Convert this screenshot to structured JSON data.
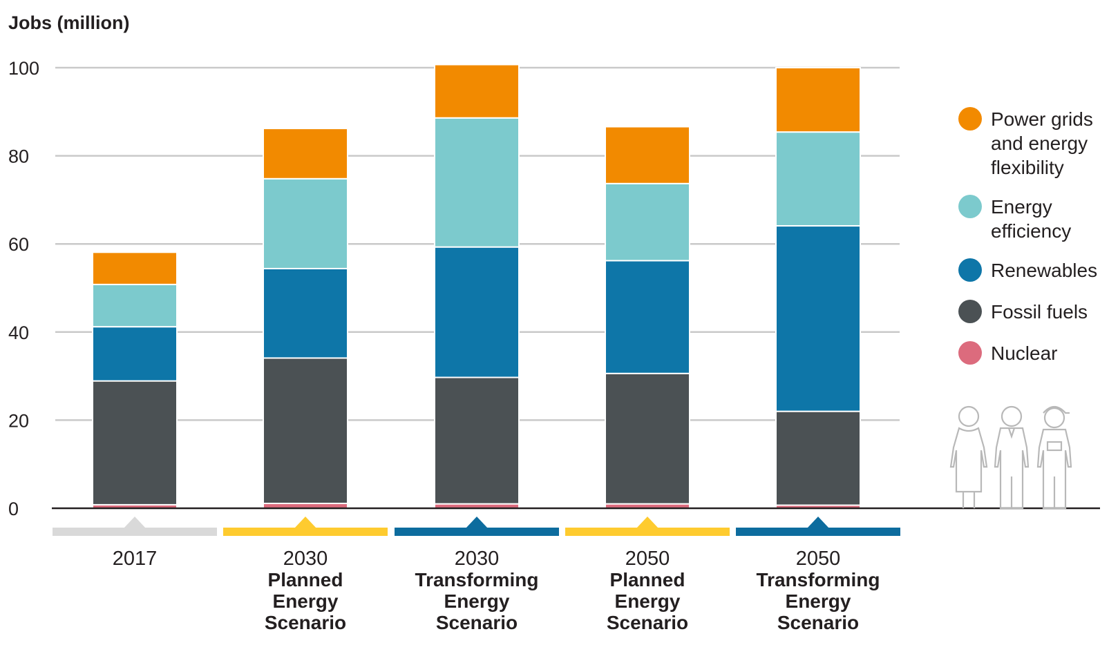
{
  "chart_data": {
    "type": "bar",
    "stacked": true,
    "ylabel": "Jobs (million)",
    "ylim": [
      0,
      100
    ],
    "yticks": [
      0,
      20,
      40,
      60,
      80,
      100
    ],
    "categories": [
      {
        "year": "2017",
        "scenario": [],
        "marker_color": "#d9d9d9"
      },
      {
        "year": "2030",
        "scenario": [
          "Planned",
          "Energy",
          "Scenario"
        ],
        "marker_color": "#fecb2f"
      },
      {
        "year": "2030",
        "scenario": [
          "Transforming",
          "Energy",
          "Scenario"
        ],
        "marker_color": "#0d6c9e"
      },
      {
        "year": "2050",
        "scenario": [
          "Planned",
          "Energy",
          "Scenario"
        ],
        "marker_color": "#fecb2f"
      },
      {
        "year": "2050",
        "scenario": [
          "Transforming",
          "Energy",
          "Scenario"
        ],
        "marker_color": "#0d6c9e"
      }
    ],
    "series": [
      {
        "name": "Nuclear",
        "color": "#dc6b7d",
        "values": [
          0.8,
          1.1,
          1.0,
          1.0,
          0.7
        ]
      },
      {
        "name": "Fossil fuels",
        "color": "#4b5154",
        "values": [
          28.1,
          33.0,
          28.7,
          29.6,
          21.3
        ]
      },
      {
        "name": "Renewables",
        "color": "#0e76a8",
        "values": [
          12.3,
          20.3,
          29.6,
          25.6,
          42.1
        ]
      },
      {
        "name": "Energy efficiency",
        "color": "#7ccacd",
        "values": [
          9.6,
          20.4,
          29.3,
          17.5,
          21.3
        ]
      },
      {
        "name": "Power grids and energy flexibility",
        "color": "#f28a00",
        "values": [
          7.3,
          11.4,
          12.1,
          12.9,
          14.6
        ]
      }
    ],
    "legend": {
      "placement": "right",
      "items": [
        {
          "lines": [
            "Power grids",
            "and energy",
            "flexibility"
          ],
          "color": "#f28a00"
        },
        {
          "lines": [
            "Energy",
            "efficiency"
          ],
          "color": "#7ccacd"
        },
        {
          "lines": [
            "Renewables"
          ],
          "color": "#0e76a8"
        },
        {
          "lines": [
            "Fossil fuels"
          ],
          "color": "#4b5154"
        },
        {
          "lines": [
            "Nuclear"
          ],
          "color": "#dc6b7d"
        }
      ]
    },
    "decoration": "workers-icon"
  }
}
